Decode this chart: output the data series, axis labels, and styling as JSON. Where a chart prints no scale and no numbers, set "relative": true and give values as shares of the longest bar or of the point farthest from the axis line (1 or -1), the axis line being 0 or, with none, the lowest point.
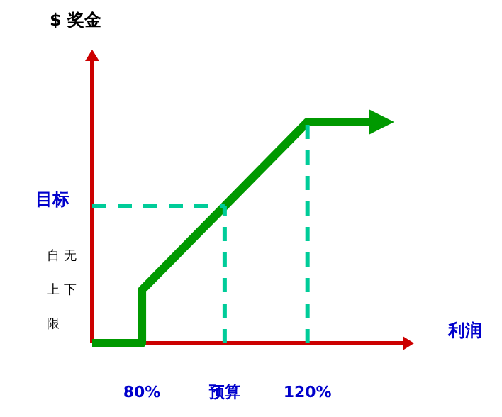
{
  "chart_data": {
    "type": "line",
    "relative": true,
    "xlabel": "利润",
    "xlim": [
      68,
      143
    ],
    "xticks": [
      {
        "value": 80,
        "label": "80%"
      },
      {
        "value": 100,
        "label": "预算"
      },
      {
        "value": 120,
        "label": "120%"
      }
    ],
    "series": [
      {
        "color": "#009900",
        "x": [
          68,
          80,
          80,
          120,
          136
        ],
        "values": [
          0,
          0,
          0.24,
          1,
          1
        ],
        "line_style": "solid"
      }
    ],
    "ref_lines": [
      {
        "axis": "y",
        "value": 0.62,
        "label": "目标",
        "color": "#00cc99",
        "line_style": "dashed"
      },
      {
        "axis": "x",
        "value": 100,
        "color": "#00cc99",
        "line_style": "dashed"
      },
      {
        "axis": "x",
        "value": 120,
        "color": "#00cc99",
        "line_style": "dashed"
      }
    ],
    "annotations": [
      "$ 奖金",
      "自无上下限"
    ]
  }
}
